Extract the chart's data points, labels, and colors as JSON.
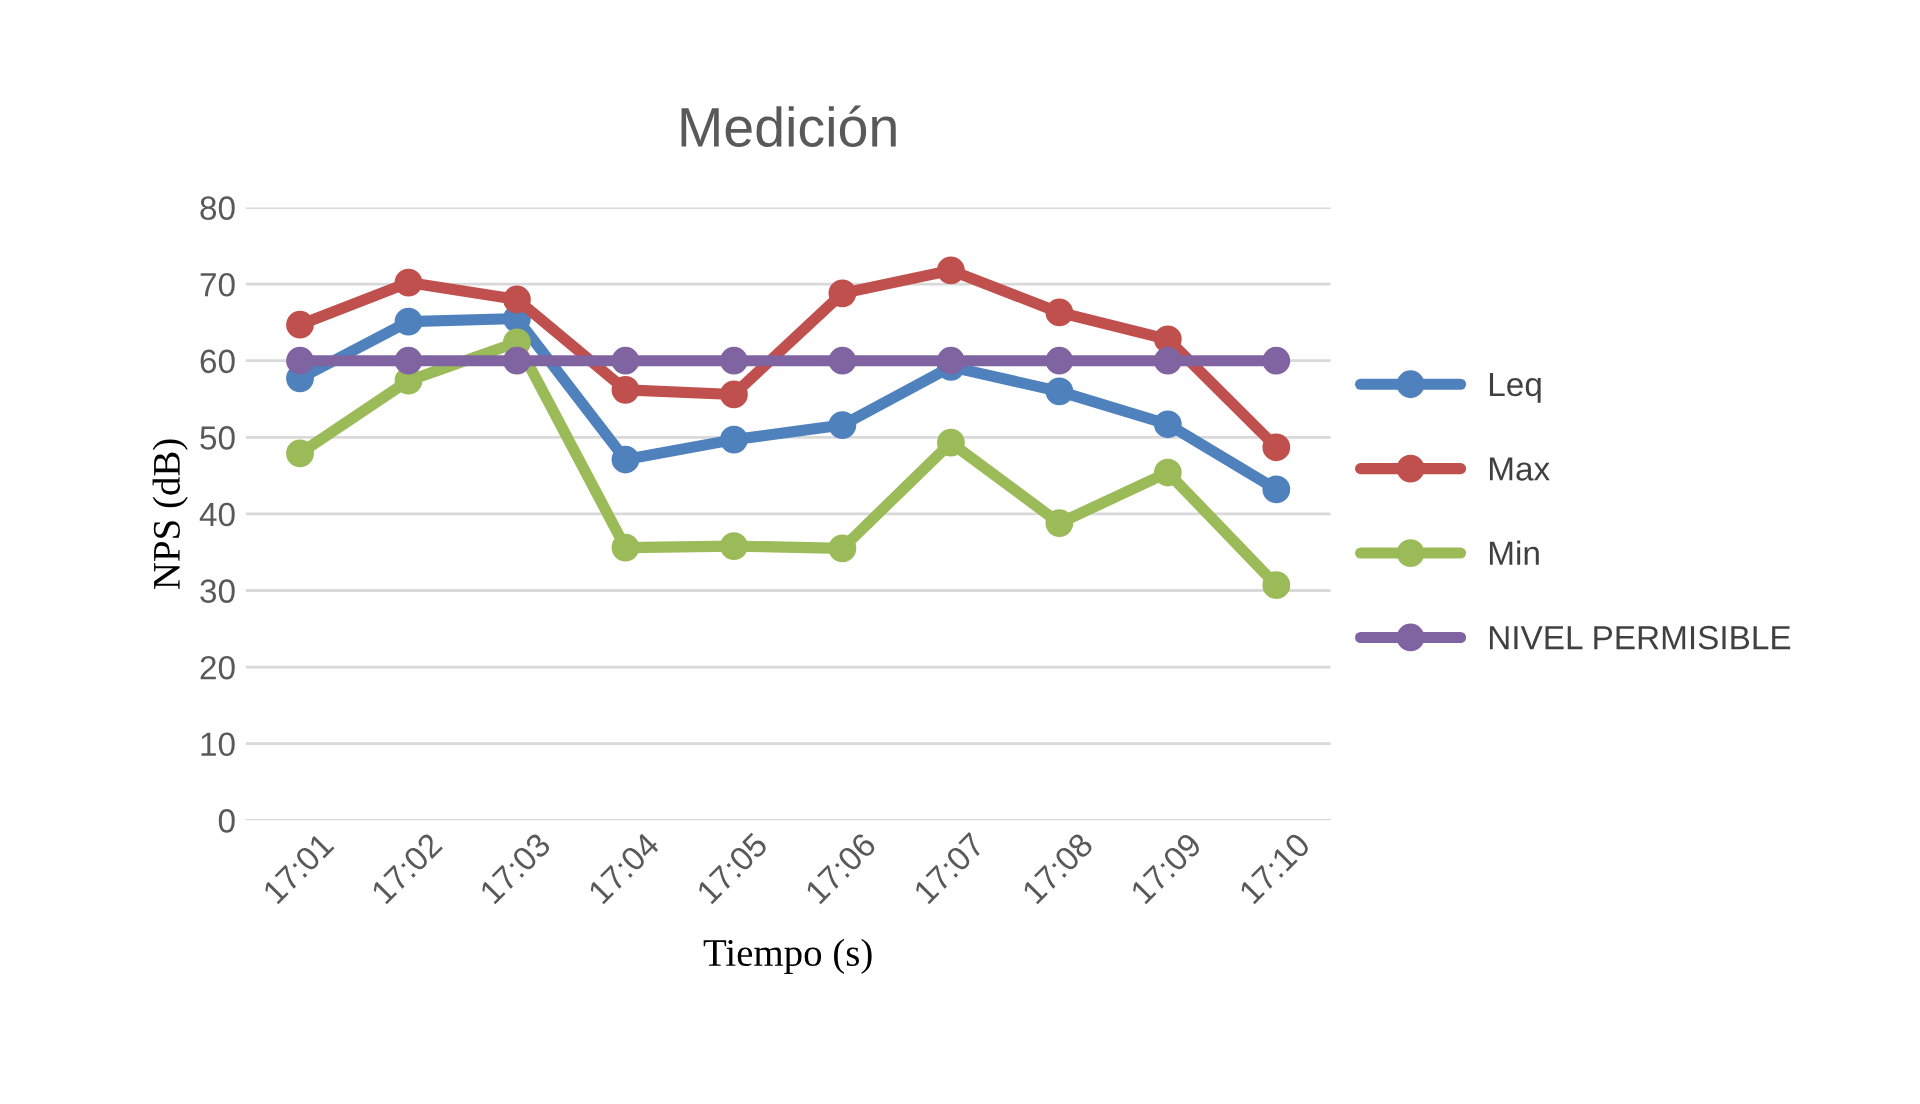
{
  "chart_data": {
    "type": "line",
    "title": "Medición",
    "xlabel": "Tiempo (s)",
    "ylabel": "NPS (dB)",
    "categories": [
      "17:01",
      "17:02",
      "17:03",
      "17:04",
      "17:05",
      "17:06",
      "17:07",
      "17:08",
      "17:09",
      "17:10"
    ],
    "series": [
      {
        "name": "Leq",
        "color": "#4f81bd",
        "values": [
          57.7,
          65.1,
          65.5,
          47.1,
          49.7,
          51.6,
          59.2,
          56.0,
          51.7,
          43.2
        ]
      },
      {
        "name": "Max",
        "color": "#c0504d",
        "values": [
          64.7,
          70.2,
          68.0,
          56.2,
          55.6,
          68.8,
          71.8,
          66.3,
          62.8,
          48.7
        ]
      },
      {
        "name": "Min",
        "color": "#9bbb59",
        "values": [
          47.9,
          57.4,
          62.4,
          35.6,
          35.8,
          35.5,
          49.3,
          38.8,
          45.4,
          30.7
        ]
      },
      {
        "name": "NIVEL PERMISIBLE",
        "color": "#8064a2",
        "values": [
          60,
          60,
          60,
          60,
          60,
          60,
          60,
          60,
          60,
          60
        ]
      }
    ],
    "ylim": [
      0,
      80
    ],
    "yticks": [
      0,
      10,
      20,
      30,
      40,
      50,
      60,
      70,
      80
    ],
    "grid": "y",
    "legend": "right",
    "marker": "circle",
    "line_style": "solid"
  }
}
